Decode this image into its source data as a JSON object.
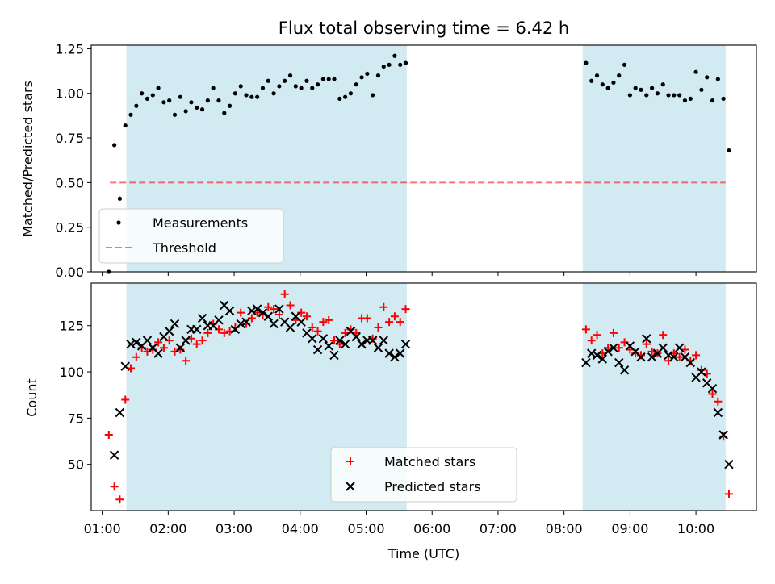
{
  "title": "Flux total observing time = 6.42 h",
  "colors": {
    "shade": "#add8e6",
    "measurement": "#000000",
    "threshold": "#ff0000",
    "matched": "#ff0000",
    "predicted": "#000000"
  },
  "chart_data": [
    {
      "type": "scatter",
      "ylabel": "Matched/Predicted stars",
      "xlim": [
        "00:50",
        "10:55"
      ],
      "ylim": [
        0,
        1.27
      ],
      "yticks": [
        0.0,
        0.25,
        0.5,
        0.75,
        1.0,
        1.25
      ],
      "ytick_labels": [
        "0.00",
        "0.25",
        "0.50",
        "0.75",
        "1.00",
        "1.25"
      ],
      "legend": {
        "placement": "lower-left",
        "entries": [
          {
            "label": "Measurements",
            "marker": "dot"
          },
          {
            "label": "Threshold",
            "marker": "dashed-line"
          }
        ]
      },
      "shaded_intervals": [
        [
          "01:22",
          "05:37"
        ],
        [
          "08:17",
          "10:27"
        ]
      ],
      "threshold": {
        "value": 0.5,
        "x_range": [
          "01:07",
          "10:27"
        ]
      },
      "series": [
        {
          "marker": "dot",
          "points": [
            [
              "01:06",
              0.0
            ],
            [
              "01:11",
              0.71
            ],
            [
              "01:16",
              0.41
            ],
            [
              "01:21",
              0.82
            ],
            [
              "01:26",
              0.88
            ],
            [
              "01:31",
              0.93
            ],
            [
              "01:36",
              1.0
            ],
            [
              "01:41",
              0.97
            ],
            [
              "01:46",
              0.99
            ],
            [
              "01:51",
              1.03
            ],
            [
              "01:56",
              0.95
            ],
            [
              "02:01",
              0.96
            ],
            [
              "02:06",
              0.88
            ],
            [
              "02:11",
              0.98
            ],
            [
              "02:16",
              0.9
            ],
            [
              "02:21",
              0.95
            ],
            [
              "02:26",
              0.92
            ],
            [
              "02:31",
              0.91
            ],
            [
              "02:36",
              0.96
            ],
            [
              "02:41",
              1.03
            ],
            [
              "02:46",
              0.96
            ],
            [
              "02:51",
              0.89
            ],
            [
              "02:56",
              0.93
            ],
            [
              "03:01",
              1.0
            ],
            [
              "03:06",
              1.04
            ],
            [
              "03:11",
              0.99
            ],
            [
              "03:16",
              0.98
            ],
            [
              "03:21",
              0.98
            ],
            [
              "03:26",
              1.03
            ],
            [
              "03:31",
              1.07
            ],
            [
              "03:36",
              1.0
            ],
            [
              "03:41",
              1.04
            ],
            [
              "03:46",
              1.07
            ],
            [
              "03:51",
              1.1
            ],
            [
              "03:56",
              1.04
            ],
            [
              "04:01",
              1.03
            ],
            [
              "04:06",
              1.07
            ],
            [
              "04:11",
              1.03
            ],
            [
              "04:16",
              1.05
            ],
            [
              "04:21",
              1.08
            ],
            [
              "04:26",
              1.08
            ],
            [
              "04:31",
              1.08
            ],
            [
              "04:36",
              0.97
            ],
            [
              "04:41",
              0.98
            ],
            [
              "04:46",
              1.0
            ],
            [
              "04:51",
              1.05
            ],
            [
              "04:56",
              1.09
            ],
            [
              "05:01",
              1.11
            ],
            [
              "05:06",
              0.99
            ],
            [
              "05:11",
              1.1
            ],
            [
              "05:16",
              1.15
            ],
            [
              "05:21",
              1.16
            ],
            [
              "05:26",
              1.21
            ],
            [
              "05:31",
              1.16
            ],
            [
              "05:36",
              1.17
            ],
            [
              "08:20",
              1.17
            ],
            [
              "08:25",
              1.07
            ],
            [
              "08:30",
              1.1
            ],
            [
              "08:35",
              1.05
            ],
            [
              "08:40",
              1.03
            ],
            [
              "08:45",
              1.06
            ],
            [
              "08:50",
              1.1
            ],
            [
              "08:55",
              1.16
            ],
            [
              "09:00",
              0.99
            ],
            [
              "09:05",
              1.03
            ],
            [
              "09:10",
              1.02
            ],
            [
              "09:15",
              0.99
            ],
            [
              "09:20",
              1.03
            ],
            [
              "09:25",
              1.0
            ],
            [
              "09:30",
              1.05
            ],
            [
              "09:35",
              0.99
            ],
            [
              "09:40",
              0.99
            ],
            [
              "09:45",
              0.99
            ],
            [
              "09:50",
              0.96
            ],
            [
              "09:55",
              0.97
            ],
            [
              "10:00",
              1.12
            ],
            [
              "10:05",
              1.02
            ],
            [
              "10:10",
              1.09
            ],
            [
              "10:15",
              0.96
            ],
            [
              "10:20",
              1.08
            ],
            [
              "10:25",
              0.97
            ],
            [
              "10:30",
              0.68
            ]
          ]
        }
      ]
    },
    {
      "type": "scatter",
      "xlabel": "Time (UTC)",
      "ylabel": "Count",
      "xlim": [
        "00:50",
        "10:55"
      ],
      "ylim": [
        25,
        148
      ],
      "xticks": [
        "01:00",
        "02:00",
        "03:00",
        "04:00",
        "05:00",
        "06:00",
        "07:00",
        "08:00",
        "09:00",
        "10:00"
      ],
      "yticks": [
        50,
        75,
        100,
        125
      ],
      "ytick_labels": [
        "50",
        "75",
        "100",
        "125"
      ],
      "legend": {
        "placement": "lower-center",
        "entries": [
          {
            "label": "Matched stars",
            "marker": "plus"
          },
          {
            "label": "Predicted stars",
            "marker": "x"
          }
        ]
      },
      "shaded_intervals": [
        [
          "01:22",
          "05:37"
        ],
        [
          "08:17",
          "10:27"
        ]
      ],
      "series": [
        {
          "marker": "plus",
          "points": [
            [
              "01:06",
              66
            ],
            [
              "01:11",
              38
            ],
            [
              "01:16",
              31
            ],
            [
              "01:21",
              85
            ],
            [
              "01:26",
              102
            ],
            [
              "01:31",
              108
            ],
            [
              "01:36",
              113
            ],
            [
              "01:41",
              111
            ],
            [
              "01:46",
              112
            ],
            [
              "01:51",
              116
            ],
            [
              "01:56",
              113
            ],
            [
              "02:01",
              117
            ],
            [
              "02:06",
              111
            ],
            [
              "02:11",
              112
            ],
            [
              "02:16",
              106
            ],
            [
              "02:21",
              118
            ],
            [
              "02:26",
              115
            ],
            [
              "02:31",
              117
            ],
            [
              "02:36",
              121
            ],
            [
              "02:41",
              126
            ],
            [
              "02:46",
              123
            ],
            [
              "02:51",
              121
            ],
            [
              "02:56",
              122
            ],
            [
              "03:01",
              124
            ],
            [
              "03:06",
              132
            ],
            [
              "03:11",
              126
            ],
            [
              "03:16",
              129
            ],
            [
              "03:21",
              132
            ],
            [
              "03:26",
              131
            ],
            [
              "03:31",
              135
            ],
            [
              "03:36",
              134
            ],
            [
              "03:41",
              131
            ],
            [
              "03:46",
              142
            ],
            [
              "03:51",
              136
            ],
            [
              "03:56",
              128
            ],
            [
              "04:01",
              132
            ],
            [
              "04:06",
              130
            ],
            [
              "04:11",
              124
            ],
            [
              "04:16",
              122
            ],
            [
              "04:21",
              127
            ],
            [
              "04:26",
              128
            ],
            [
              "04:31",
              117
            ],
            [
              "04:36",
              115
            ],
            [
              "04:41",
              121
            ],
            [
              "04:46",
              123
            ],
            [
              "04:51",
              121
            ],
            [
              "04:56",
              129
            ],
            [
              "05:01",
              129
            ],
            [
              "05:06",
              118
            ],
            [
              "05:11",
              124
            ],
            [
              "05:16",
              135
            ],
            [
              "05:21",
              127
            ],
            [
              "05:26",
              130
            ],
            [
              "05:31",
              127
            ],
            [
              "05:36",
              134
            ],
            [
              "08:20",
              123
            ],
            [
              "08:25",
              117
            ],
            [
              "08:30",
              120
            ],
            [
              "08:35",
              110
            ],
            [
              "08:40",
              113
            ],
            [
              "08:45",
              121
            ],
            [
              "08:50",
              113
            ],
            [
              "08:55",
              116
            ],
            [
              "09:00",
              112
            ],
            [
              "09:05",
              110
            ],
            [
              "09:10",
              109
            ],
            [
              "09:15",
              115
            ],
            [
              "09:20",
              111
            ],
            [
              "09:25",
              110
            ],
            [
              "09:30",
              120
            ],
            [
              "09:35",
              106
            ],
            [
              "09:40",
              110
            ],
            [
              "09:45",
              108
            ],
            [
              "09:50",
              112
            ],
            [
              "09:55",
              106
            ],
            [
              "10:00",
              109
            ],
            [
              "10:05",
              101
            ],
            [
              "10:10",
              99
            ],
            [
              "10:15",
              88
            ],
            [
              "10:20",
              84
            ],
            [
              "10:25",
              65
            ],
            [
              "10:30",
              34
            ]
          ]
        },
        {
          "marker": "x",
          "points": [
            [
              "01:11",
              55
            ],
            [
              "01:16",
              78
            ],
            [
              "01:21",
              103
            ],
            [
              "01:26",
              115
            ],
            [
              "01:31",
              116
            ],
            [
              "01:36",
              114
            ],
            [
              "01:41",
              117
            ],
            [
              "01:46",
              113
            ],
            [
              "01:51",
              110
            ],
            [
              "01:56",
              119
            ],
            [
              "02:01",
              122
            ],
            [
              "02:06",
              126
            ],
            [
              "02:11",
              113
            ],
            [
              "02:16",
              117
            ],
            [
              "02:21",
              123
            ],
            [
              "02:26",
              123
            ],
            [
              "02:31",
              129
            ],
            [
              "02:36",
              125
            ],
            [
              "02:41",
              125
            ],
            [
              "02:46",
              128
            ],
            [
              "02:51",
              136
            ],
            [
              "02:56",
              133
            ],
            [
              "03:01",
              123
            ],
            [
              "03:06",
              126
            ],
            [
              "03:11",
              127
            ],
            [
              "03:16",
              133
            ],
            [
              "03:21",
              134
            ],
            [
              "03:26",
              132
            ],
            [
              "03:31",
              130
            ],
            [
              "03:36",
              126
            ],
            [
              "03:41",
              134
            ],
            [
              "03:46",
              127
            ],
            [
              "03:51",
              124
            ],
            [
              "03:56",
              130
            ],
            [
              "04:01",
              127
            ],
            [
              "04:06",
              121
            ],
            [
              "04:11",
              118
            ],
            [
              "04:16",
              112
            ],
            [
              "04:21",
              118
            ],
            [
              "04:26",
              114
            ],
            [
              "04:31",
              109
            ],
            [
              "04:36",
              117
            ],
            [
              "04:41",
              115
            ],
            [
              "04:46",
              122
            ],
            [
              "04:51",
              119
            ],
            [
              "04:56",
              115
            ],
            [
              "05:01",
              117
            ],
            [
              "05:06",
              117
            ],
            [
              "05:11",
              113
            ],
            [
              "05:16",
              117
            ],
            [
              "05:21",
              110
            ],
            [
              "05:26",
              108
            ],
            [
              "05:31",
              110
            ],
            [
              "05:36",
              115
            ],
            [
              "08:20",
              105
            ],
            [
              "08:25",
              110
            ],
            [
              "08:30",
              109
            ],
            [
              "08:35",
              107
            ],
            [
              "08:40",
              111
            ],
            [
              "08:45",
              113
            ],
            [
              "08:50",
              105
            ],
            [
              "08:55",
              101
            ],
            [
              "09:00",
              114
            ],
            [
              "09:05",
              111
            ],
            [
              "09:10",
              108
            ],
            [
              "09:15",
              118
            ],
            [
              "09:20",
              108
            ],
            [
              "09:25",
              110
            ],
            [
              "09:30",
              113
            ],
            [
              "09:35",
              109
            ],
            [
              "09:40",
              108
            ],
            [
              "09:45",
              113
            ],
            [
              "09:50",
              108
            ],
            [
              "09:55",
              105
            ],
            [
              "10:00",
              97
            ],
            [
              "10:05",
              100
            ],
            [
              "10:10",
              94
            ],
            [
              "10:15",
              91
            ],
            [
              "10:20",
              78
            ],
            [
              "10:25",
              66
            ],
            [
              "10:30",
              50
            ]
          ]
        }
      ]
    }
  ]
}
